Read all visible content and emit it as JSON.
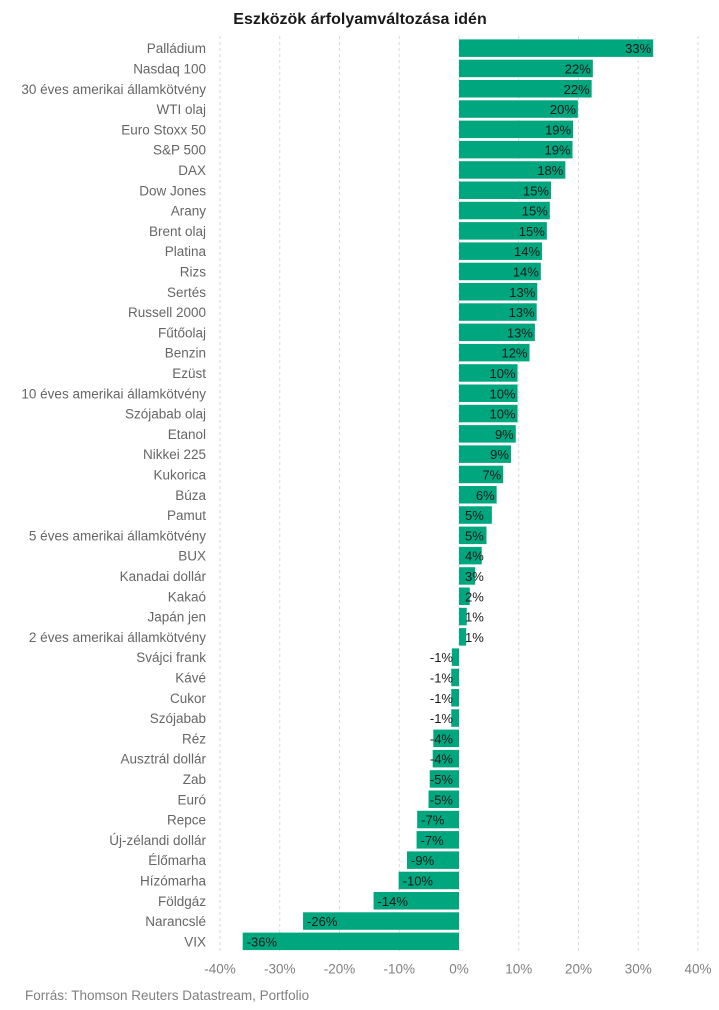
{
  "chart_data": {
    "type": "bar",
    "orientation": "horizontal",
    "title": "Eszközök árfolyamváltozása idén",
    "source": "Forrás: Thomson Reuters Datastream, Portfolio",
    "bar_color": "#00a67e",
    "xlim": [
      -40,
      40
    ],
    "x_ticks": [
      -40,
      -30,
      -20,
      -10,
      0,
      10,
      20,
      30,
      40
    ],
    "x_tick_labels": [
      "-40%",
      "-30%",
      "-20%",
      "-10%",
      "0%",
      "10%",
      "20%",
      "30%",
      "40%"
    ],
    "grid": true,
    "categories": [
      "Palládium",
      "Nasdaq 100",
      "30 éves amerikai államkötvény",
      "WTI olaj",
      "Euro Stoxx 50",
      "S&P 500",
      "DAX",
      "Dow Jones",
      "Arany",
      "Brent olaj",
      "Platina",
      "Rizs",
      "Sertés",
      "Russell 2000",
      "Fűtőolaj",
      "Benzin",
      "Ezüst",
      "10 éves amerikai államkötvény",
      "Szójabab olaj",
      "Etanol",
      "Nikkei 225",
      "Kukorica",
      "Búza",
      "Pamut",
      "5 éves amerikai államkötvény",
      "BUX",
      "Kanadai dollár",
      "Kakaó",
      "Japán jen",
      "2 éves amerikai államkötvény",
      "Svájci frank",
      "Kávé",
      "Cukor",
      "Szójabab",
      "Réz",
      "Ausztrál dollár",
      "Zab",
      "Euró",
      "Repce",
      "Új-zélandi dollár",
      "Élőmarha",
      "Hízómarha",
      "Földgáz",
      "Narancslé",
      "VIX"
    ],
    "values": [
      32.5,
      22.4,
      22.2,
      19.9,
      19.1,
      19.0,
      17.8,
      15.4,
      15.2,
      14.7,
      13.9,
      13.7,
      13.1,
      13.0,
      12.7,
      11.8,
      9.8,
      9.8,
      9.8,
      9.5,
      8.7,
      7.4,
      6.3,
      5.5,
      4.6,
      3.8,
      2.7,
      1.8,
      1.3,
      1.2,
      -1.2,
      -1.3,
      -1.3,
      -1.3,
      -4.3,
      -4.4,
      -4.9,
      -5.1,
      -7.0,
      -7.1,
      -8.7,
      -10.1,
      -14.3,
      -26.1,
      -36.2
    ],
    "value_labels": [
      "33%",
      "22%",
      "22%",
      "20%",
      "19%",
      "19%",
      "18%",
      "15%",
      "15%",
      "15%",
      "14%",
      "14%",
      "13%",
      "13%",
      "13%",
      "12%",
      "10%",
      "10%",
      "10%",
      "9%",
      "9%",
      "7%",
      "6%",
      "5%",
      "5%",
      "4%",
      "3%",
      "2%",
      "1%",
      "1%",
      "-1%",
      "-1%",
      "-1%",
      "-1%",
      "-4%",
      "-4%",
      "-5%",
      "-5%",
      "-7%",
      "-7%",
      "-9%",
      "-10%",
      "-14%",
      "-26%",
      "-36%"
    ]
  }
}
